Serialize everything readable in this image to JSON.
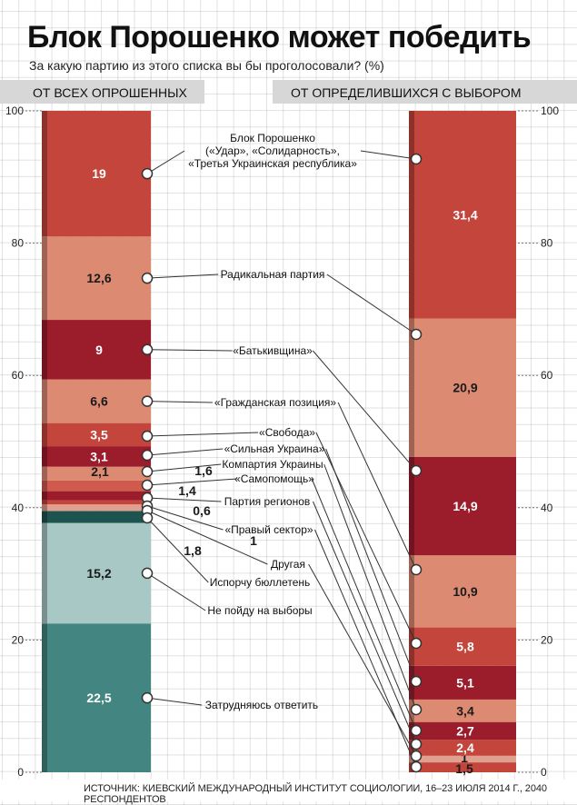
{
  "header": {
    "title": "Блок Порошенко может победить",
    "subtitle": "За какую партию из этого списка вы бы проголосовали? (%)",
    "left_column": "ОТ ВСЕХ ОПРОШЕННЫХ",
    "right_column": "ОТ ОПРЕДЕЛИВШИХСЯ С ВЫБОРОМ"
  },
  "source": "ИСТОЧНИК: КИЕВСКИЙ МЕЖДУНАРОДНЫЙ ИНСТИТУТ СОЦИОЛОГИИ, 16–23 ИЮЛЯ 2014 Г., 2040 РЕСПОНДЕНТОВ",
  "colors": {
    "red": "#c4453b",
    "salmon": "#dd8a73",
    "maroon": "#9b1c2b",
    "teal_dark": "#1e5450",
    "teal_light": "#a8c8c5",
    "teal": "#438580"
  },
  "chart_data": {
    "type": "bar",
    "stacked": true,
    "ylim": [
      0,
      100
    ],
    "yticks": [
      0,
      20,
      40,
      60,
      80,
      100
    ],
    "left_bar": {
      "name": "ОТ ВСЕХ ОПРОШЕННЫХ",
      "segments": [
        {
          "category": "Затрудняюсь ответить",
          "value": 22.5,
          "display": "22,5",
          "color": "#438580",
          "text_color": "#ffffff"
        },
        {
          "category": "Не пойду на выборы",
          "value": 15.2,
          "display": "15,2",
          "color": "#a8c8c5",
          "text_color": "#1a1a1a"
        },
        {
          "category": "Испорчу бюллетень",
          "value": 1.8,
          "display": "1,8",
          "color": "#1e5450",
          "text_color": "#1a1a1a"
        },
        {
          "category": "Другая",
          "value": 1.0,
          "display": "1",
          "color": "#e0a090",
          "text_color": "#1a1a1a"
        },
        {
          "category": "«Правый сектор»",
          "value": 0.6,
          "display": "0,6",
          "color": "#c4453b",
          "text_color": "#1a1a1a"
        },
        {
          "category": "Партия регионов",
          "value": 1.4,
          "display": "1,4",
          "color": "#9b1c2b",
          "text_color": "#1a1a1a"
        },
        {
          "category": "«Самопомощь»",
          "value": 1.6,
          "display": "1,6",
          "color": "#d05a4c",
          "text_color": "#1a1a1a"
        },
        {
          "category": "Компартия Украины",
          "value": 2.1,
          "display": "2,1",
          "color": "#dd8a73",
          "text_color": "#1a1a1a"
        },
        {
          "category": "«Сильная Украина»",
          "value": 3.1,
          "display": "3,1",
          "color": "#9b1c2b",
          "text_color": "#ffffff"
        },
        {
          "category": "«Свобода»",
          "value": 3.5,
          "display": "3,5",
          "color": "#c4453b",
          "text_color": "#ffffff"
        },
        {
          "category": "«Гражданская позиция»",
          "value": 6.6,
          "display": "6,6",
          "color": "#dd8a73",
          "text_color": "#1a1a1a"
        },
        {
          "category": "«Батькивщина»",
          "value": 9.0,
          "display": "9",
          "color": "#9b1c2b",
          "text_color": "#ffffff"
        },
        {
          "category": "Радикальная партия",
          "value": 12.6,
          "display": "12,6",
          "color": "#dd8a73",
          "text_color": "#1a1a1a"
        },
        {
          "category": "Блок Порошенко («Удар», «Солидарность», «Третья Украинская республика»)",
          "value": 19.0,
          "display": "19",
          "color": "#c4453b",
          "text_color": "#ffffff"
        }
      ]
    },
    "right_bar": {
      "name": "ОТ ОПРЕДЕЛИВШИХСЯ С ВЫБОРОМ",
      "segments": [
        {
          "category": "«Правый сектор»",
          "value": 1.5,
          "display": "1,5",
          "color": "#c4453b",
          "text_color": "#1a1a1a"
        },
        {
          "category": "Другая",
          "value": 1.0,
          "display": "1",
          "color": "#e0a090",
          "text_color": "#1a1a1a"
        },
        {
          "category": "Партия регионов",
          "value": 2.4,
          "display": "2,4",
          "color": "#c4453b",
          "text_color": "#ffffff"
        },
        {
          "category": "«Самопомощь»",
          "value": 2.7,
          "display": "2,7",
          "color": "#9b1c2b",
          "text_color": "#ffffff"
        },
        {
          "category": "Компартия Украины",
          "value": 3.4,
          "display": "3,4",
          "color": "#dd8a73",
          "text_color": "#1a1a1a"
        },
        {
          "category": "«Сильная Украина»",
          "value": 5.1,
          "display": "5,1",
          "color": "#9b1c2b",
          "text_color": "#ffffff"
        },
        {
          "category": "«Свобода»",
          "value": 5.8,
          "display": "5,8",
          "color": "#c4453b",
          "text_color": "#ffffff"
        },
        {
          "category": "«Гражданская позиция»",
          "value": 10.9,
          "display": "10,9",
          "color": "#dd8a73",
          "text_color": "#1a1a1a"
        },
        {
          "category": "«Батькивщина»",
          "value": 14.9,
          "display": "14,9",
          "color": "#9b1c2b",
          "text_color": "#ffffff"
        },
        {
          "category": "Радикальная партия",
          "value": 20.9,
          "display": "20,9",
          "color": "#dd8a73",
          "text_color": "#1a1a1a"
        },
        {
          "category": "Блок Порошенко («Удар», «Солидарность», «Третья Украинская республика»)",
          "value": 31.4,
          "display": "31,4",
          "color": "#c4453b",
          "text_color": "#ffffff"
        }
      ]
    },
    "labels": [
      {
        "category": "Блок Порошенко («Удар», «Солидарность», «Третья Украинская республика»)",
        "lines": [
          "Блок Порошенко",
          "(«Удар», «Солидарность»,",
          "«Третья Украинская республика»"
        ]
      },
      {
        "category": "Радикальная партия",
        "lines": [
          "Радикальная партия"
        ]
      },
      {
        "category": "«Батькивщина»",
        "lines": [
          "«Батькивщина»"
        ]
      },
      {
        "category": "«Гражданская позиция»",
        "lines": [
          "«Гражданская позиция»"
        ]
      },
      {
        "category": "«Свобода»",
        "lines": [
          "«Свобода»"
        ]
      },
      {
        "category": "«Сильная Украина»",
        "lines": [
          "«Сильная Украина»"
        ]
      },
      {
        "category": "Компартия Украины",
        "lines": [
          "Компартия Украины"
        ]
      },
      {
        "category": "«Самопомощь»",
        "lines": [
          "«Самопомощь»"
        ]
      },
      {
        "category": "Партия регионов",
        "lines": [
          "Партия регионов"
        ]
      },
      {
        "category": "«Правый сектор»",
        "lines": [
          "«Правый сектор»"
        ]
      },
      {
        "category": "Другая",
        "lines": [
          "Другая"
        ]
      },
      {
        "category": "Испорчу бюллетень",
        "lines": [
          "Испорчу бюллетень"
        ]
      },
      {
        "category": "Не пойду на выборы",
        "lines": [
          "Не пойду на выборы"
        ]
      },
      {
        "category": "Затрудняюсь ответить",
        "lines": [
          "Затрудняюсь ответить"
        ]
      }
    ]
  }
}
